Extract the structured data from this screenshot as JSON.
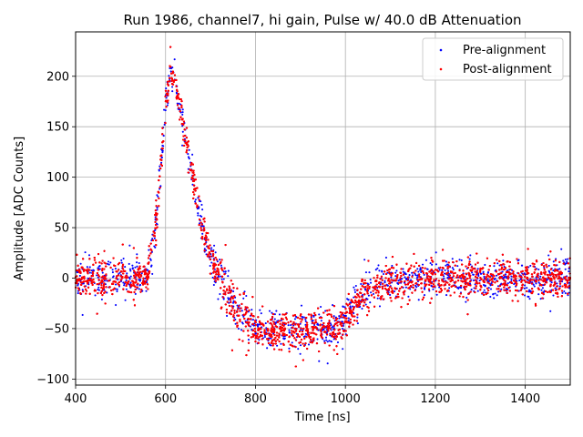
{
  "chart_data": {
    "type": "scatter",
    "title": "Run 1986, channel7, hi gain, Pulse w/ 40.0 dB Attenuation",
    "xlabel": "Time [ns]",
    "ylabel": "Amplitude [ADC Counts]",
    "xlim": [
      400,
      1500
    ],
    "ylim": [
      -106,
      244
    ],
    "xticks": [
      400,
      600,
      800,
      1000,
      1200,
      1400
    ],
    "yticks": [
      -100,
      -50,
      0,
      50,
      100,
      150,
      200
    ],
    "grid": true,
    "legend_position": "top-right",
    "series": [
      {
        "name": "Pre-alignment",
        "color": "#0000ff",
        "marker": "point",
        "approx_envelope": {
          "x": [
            400,
            560,
            580,
            600,
            610,
            620,
            640,
            660,
            680,
            700,
            720,
            760,
            800,
            900,
            980,
            1000,
            1040,
            1080,
            1200,
            1500
          ],
          "center": [
            0,
            0,
            60,
            170,
            205,
            195,
            150,
            100,
            55,
            20,
            0,
            -35,
            -50,
            -52,
            -50,
            -40,
            -15,
            -5,
            0,
            0
          ],
          "half_width": [
            22,
            22,
            25,
            25,
            15,
            15,
            18,
            20,
            20,
            20,
            25,
            30,
            22,
            22,
            22,
            22,
            22,
            22,
            22,
            22
          ]
        }
      },
      {
        "name": "Post-alignment",
        "color": "#ff0000",
        "marker": "point",
        "approx_envelope": {
          "x": [
            400,
            560,
            580,
            600,
            610,
            620,
            640,
            660,
            680,
            700,
            720,
            760,
            800,
            900,
            980,
            1000,
            1040,
            1080,
            1200,
            1500
          ],
          "center": [
            0,
            0,
            60,
            170,
            205,
            195,
            150,
            100,
            55,
            20,
            0,
            -35,
            -50,
            -52,
            -50,
            -40,
            -15,
            -5,
            0,
            0
          ],
          "half_width": [
            22,
            22,
            25,
            25,
            15,
            15,
            18,
            20,
            20,
            20,
            25,
            30,
            22,
            22,
            22,
            22,
            22,
            22,
            22,
            22
          ]
        }
      }
    ]
  }
}
